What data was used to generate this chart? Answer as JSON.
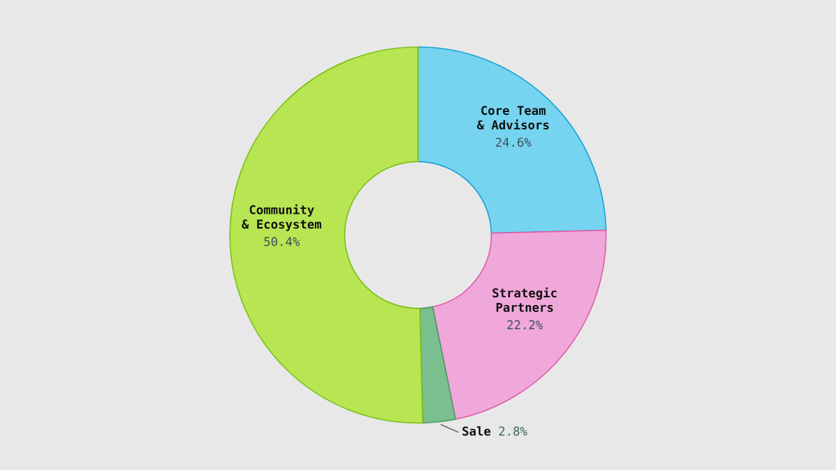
{
  "chart_data": {
    "type": "donut",
    "categories": [
      "Core Team\n& Advisors",
      "Strategic\nPartners",
      "Sale",
      "Community\n& Ecosystem"
    ],
    "values": [
      24.6,
      22.2,
      2.8,
      50.4
    ],
    "value_labels": [
      "24.6%",
      "22.2%",
      "2.8%",
      "50.4%"
    ],
    "colors": [
      "#76d4f0",
      "#f0a8da",
      "#7bbf8f",
      "#b8e552"
    ],
    "legend": false
  }
}
